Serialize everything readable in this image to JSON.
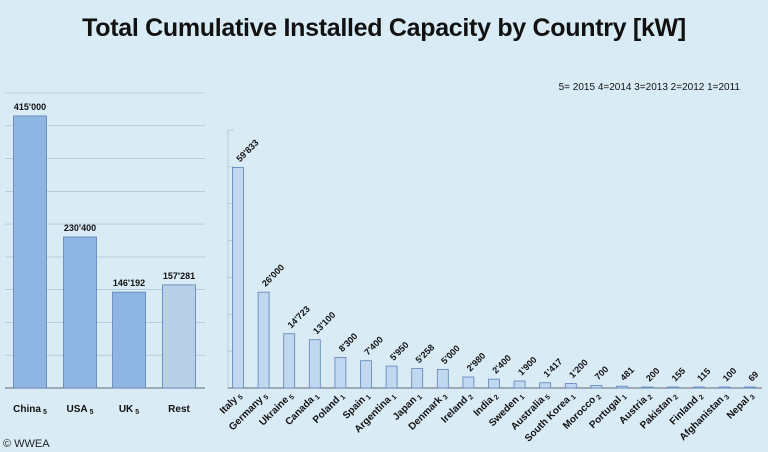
{
  "title": "Total Cumulative Installed Capacity by Country [kW]",
  "legend_note": "5= 2015  4=2014  3=2013  2=2012  1=2011",
  "credit": "© WWEA",
  "colors": {
    "background": "#d9ecf6",
    "bar_main": "#8fb5e3",
    "bar_rest": "#b8cfe6",
    "bar_small": "#c2d8f0",
    "bar_stroke": "#5d82b6",
    "grid": "#9fb8cc"
  },
  "chart_data": [
    {
      "type": "bar",
      "title": "Total Cumulative Installed Capacity by Country [kW]",
      "ylim": [
        0,
        450000
      ],
      "grid": true,
      "categories": [
        "China",
        "USA",
        "UK",
        "Rest"
      ],
      "year_codes": [
        "5",
        "5",
        "5",
        ""
      ],
      "values": [
        415000,
        230400,
        146192,
        157281
      ],
      "value_labels": [
        "415'000",
        "230'400",
        "146'192",
        "157'281"
      ]
    },
    {
      "type": "bar",
      "ylim": [
        0,
        70000
      ],
      "grid": true,
      "categories": [
        "Italy",
        "Germany",
        "Ukraine",
        "Canada",
        "Poland",
        "Spain",
        "Argentina",
        "Japan",
        "Denmark",
        "Ireland",
        "India",
        "Sweden",
        "Australia",
        "South Korea",
        "Morocco",
        "Portugal",
        "Austria",
        "Pakistan",
        "Finland",
        "Afghanistan",
        "Nepal"
      ],
      "year_codes": [
        "5",
        "5",
        "5",
        "1",
        "1",
        "1",
        "1",
        "1",
        "3",
        "2",
        "2",
        "1",
        "5",
        "1",
        "2",
        "1",
        "2",
        "2",
        "2",
        "3",
        "3"
      ],
      "values": [
        59833,
        26000,
        14723,
        13100,
        8300,
        7400,
        5950,
        5258,
        5000,
        2980,
        2400,
        1900,
        1417,
        1200,
        700,
        481,
        200,
        155,
        115,
        100,
        69
      ],
      "value_labels": [
        "59'833",
        "26'000",
        "14'723",
        "13'100",
        "8'300",
        "7'400",
        "5'950",
        "5'258",
        "5'000",
        "2'980",
        "2'400",
        "1'900",
        "1'417",
        "1'200",
        "700",
        "481",
        "200",
        "155",
        "115",
        "100",
        "69"
      ]
    }
  ]
}
